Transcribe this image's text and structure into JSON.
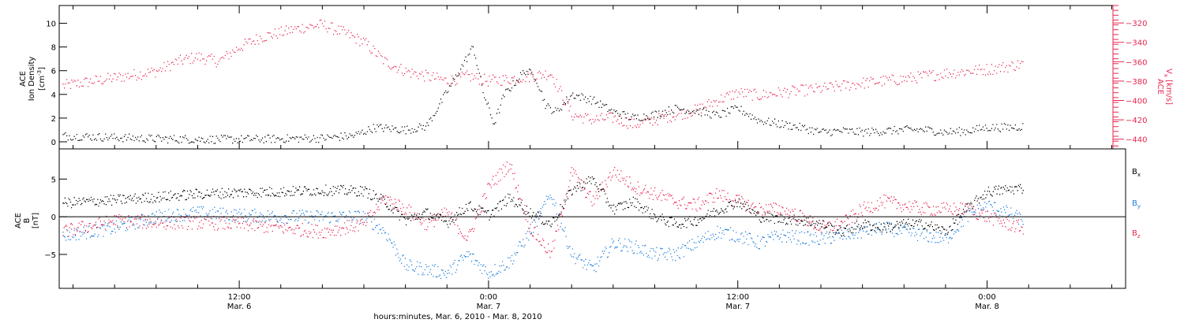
{
  "chart_data": [
    {
      "type": "scatter",
      "title": "",
      "xlabel": "hours:minutes, Mar. 6, 2010 - Mar. 8, 2010",
      "ylabel": "ACE Ion Density [cm^-3]",
      "ylabel_parts": [
        "ACE",
        "Ion Density",
        "[cm",
        "-3",
        "]"
      ],
      "y2label": "ACE Vx [km/s]",
      "y2label_parts": [
        "ACE",
        "V",
        "x",
        " [km/s]"
      ],
      "xlim": [
        "Mar. 6 03:20",
        "Mar. 8 06:40"
      ],
      "ylim": [
        -0.6,
        11.5
      ],
      "y2lim": [
        -450,
        -302
      ],
      "yticks": [
        0,
        2,
        4,
        6,
        8,
        10
      ],
      "y2ticks": [
        -320,
        -340,
        -360,
        -380,
        -400,
        -420,
        -440
      ],
      "colors": {
        "density": "#000000",
        "vx": "#e8254f"
      },
      "series": [
        {
          "axis": "left",
          "x": [
            "Mar. 6 03:30",
            "Mar. 6 06:00",
            "Mar. 6 08:00",
            "Mar. 6 10:00",
            "Mar. 6 12:00",
            "Mar. 6 14:00",
            "Mar. 6 16:00",
            "Mar. 6 17:30",
            "Mar. 6 18:30",
            "Mar. 6 20:00",
            "Mar. 6 21:00",
            "Mar. 6 21:45",
            "Mar. 6 22:15",
            "Mar. 6 22:45",
            "Mar. 6 23:15",
            "Mar. 6 23:45",
            "Mar. 7 00:15",
            "Mar. 7 00:45",
            "Mar. 7 01:15",
            "Mar. 7 01:45",
            "Mar. 7 02:15",
            "Mar. 7 02:45",
            "Mar. 7 03:15",
            "Mar. 7 04:00",
            "Mar. 7 05:00",
            "Mar. 7 06:00",
            "Mar. 7 07:00",
            "Mar. 7 08:00",
            "Mar. 7 09:00",
            "Mar. 7 10:00",
            "Mar. 7 11:00",
            "Mar. 7 12:00",
            "Mar. 7 13:00",
            "Mar. 7 14:00",
            "Mar. 7 15:00",
            "Mar. 7 16:00",
            "Mar. 7 17:00",
            "Mar. 7 18:00",
            "Mar. 7 19:00",
            "Mar. 7 20:00",
            "Mar. 7 21:00",
            "Mar. 7 22:00",
            "Mar. 7 23:00",
            "Mar. 8 00:00",
            "Mar. 8 01:00",
            "Mar. 8 01:45"
          ],
          "values": [
            0.5,
            0.35,
            0.25,
            0.2,
            0.2,
            0.25,
            0.3,
            0.5,
            1.2,
            1.0,
            1.3,
            3.5,
            5.0,
            6.5,
            8.0,
            4.0,
            1.5,
            4.0,
            5.0,
            6.0,
            5.5,
            3.0,
            2.5,
            4.0,
            3.5,
            2.5,
            2.0,
            2.3,
            2.8,
            2.6,
            2.2,
            2.8,
            1.8,
            1.5,
            1.2,
            0.8,
            0.9,
            0.8,
            0.9,
            1.0,
            1.0,
            0.8,
            0.9,
            1.2,
            1.2,
            1.3
          ]
        },
        {
          "axis": "right",
          "x": [
            "Mar. 6 03:30",
            "Mar. 6 05:00",
            "Mar. 6 06:30",
            "Mar. 6 08:00",
            "Mar. 6 09:00",
            "Mar. 6 10:00",
            "Mar. 6 11:00",
            "Mar. 6 12:00",
            "Mar. 6 13:00",
            "Mar. 6 14:00",
            "Mar. 6 15:00",
            "Mar. 6 16:00",
            "Mar. 6 17:00",
            "Mar. 6 18:00",
            "Mar. 6 19:00",
            "Mar. 6 20:00",
            "Mar. 6 21:00",
            "Mar. 6 22:00",
            "Mar. 6 23:00",
            "Mar. 7 00:00",
            "Mar. 7 01:00",
            "Mar. 7 02:00",
            "Mar. 7 03:00",
            "Mar. 7 04:00",
            "Mar. 7 05:00",
            "Mar. 7 06:00",
            "Mar. 7 07:00",
            "Mar. 7 08:00",
            "Mar. 7 09:00",
            "Mar. 7 10:00",
            "Mar. 7 11:00",
            "Mar. 7 12:00",
            "Mar. 7 13:00",
            "Mar. 7 14:00",
            "Mar. 7 15:00",
            "Mar. 7 16:00",
            "Mar. 7 17:00",
            "Mar. 7 18:00",
            "Mar. 7 19:00",
            "Mar. 7 20:00",
            "Mar. 7 21:00",
            "Mar. 7 22:00",
            "Mar. 7 23:00",
            "Mar. 8 00:00",
            "Mar. 8 01:00",
            "Mar. 8 01:45"
          ],
          "values": [
            -385,
            -380,
            -375,
            -370,
            -360,
            -355,
            -360,
            -345,
            -335,
            -330,
            -325,
            -322,
            -330,
            -340,
            -360,
            -370,
            -375,
            -380,
            -375,
            -380,
            -378,
            -375,
            -372,
            -415,
            -420,
            -418,
            -425,
            -420,
            -415,
            -410,
            -400,
            -392,
            -395,
            -392,
            -390,
            -388,
            -385,
            -382,
            -380,
            -378,
            -375,
            -372,
            -370,
            -368,
            -365,
            -362
          ]
        }
      ]
    },
    {
      "type": "scatter",
      "title": "",
      "xlabel": "",
      "ylabel": "ACE B [nT]",
      "ylabel_parts": [
        "ACE",
        "B",
        "[nT]"
      ],
      "ylim": [
        -9.5,
        9.0
      ],
      "yticks": [
        5,
        0,
        -5
      ],
      "zero_line": true,
      "legend": "right",
      "series": [
        {
          "name": "Bx",
          "name_parts": [
            "B",
            "x"
          ],
          "color": "#000000",
          "x": [
            "Mar. 6 03:30",
            "Mar. 6 06:00",
            "Mar. 6 08:00",
            "Mar. 6 10:00",
            "Mar. 6 12:00",
            "Mar. 6 14:00",
            "Mar. 6 16:00",
            "Mar. 6 18:00",
            "Mar. 6 19:00",
            "Mar. 6 20:00",
            "Mar. 6 21:00",
            "Mar. 6 22:00",
            "Mar. 6 23:00",
            "Mar. 7 00:00",
            "Mar. 7 01:00",
            "Mar. 7 02:00",
            "Mar. 7 03:00",
            "Mar. 7 04:00",
            "Mar. 7 05:00",
            "Mar. 7 06:00",
            "Mar. 7 07:00",
            "Mar. 7 08:00",
            "Mar. 7 09:00",
            "Mar. 7 10:00",
            "Mar. 7 11:00",
            "Mar. 7 12:00",
            "Mar. 7 13:00",
            "Mar. 7 14:00",
            "Mar. 7 15:00",
            "Mar. 7 16:00",
            "Mar. 7 17:00",
            "Mar. 7 18:00",
            "Mar. 7 19:00",
            "Mar. 7 20:00",
            "Mar. 7 21:00",
            "Mar. 7 22:00",
            "Mar. 7 23:00",
            "Mar. 8 00:00",
            "Mar. 8 01:00",
            "Mar. 8 01:45"
          ],
          "values": [
            1.8,
            2.2,
            2.6,
            3.0,
            3.2,
            3.3,
            3.5,
            3.4,
            2.0,
            -0.5,
            0.5,
            -0.8,
            1.5,
            0.2,
            2.5,
            0.5,
            -1.0,
            3.5,
            5.0,
            1.0,
            2.0,
            0.0,
            -1.0,
            -0.5,
            0.8,
            2.0,
            0.0,
            -0.3,
            -0.5,
            -1.0,
            -2.0,
            -1.0,
            -1.5,
            -1.0,
            -1.0,
            -2.0,
            1.0,
            3.3,
            3.6,
            3.8
          ]
        },
        {
          "name": "By",
          "name_parts": [
            "B",
            "y"
          ],
          "color": "#1f7fd9",
          "x": [
            "Mar. 6 03:30",
            "Mar. 6 06:00",
            "Mar. 6 08:00",
            "Mar. 6 10:00",
            "Mar. 6 12:00",
            "Mar. 6 14:00",
            "Mar. 6 16:00",
            "Mar. 6 18:00",
            "Mar. 6 19:00",
            "Mar. 6 20:00",
            "Mar. 6 21:00",
            "Mar. 6 22:00",
            "Mar. 6 23:00",
            "Mar. 7 00:00",
            "Mar. 7 01:00",
            "Mar. 7 02:00",
            "Mar. 7 03:00",
            "Mar. 7 04:00",
            "Mar. 7 05:00",
            "Mar. 7 06:00",
            "Mar. 7 07:00",
            "Mar. 7 08:00",
            "Mar. 7 09:00",
            "Mar. 7 10:00",
            "Mar. 7 11:00",
            "Mar. 7 12:00",
            "Mar. 7 13:00",
            "Mar. 7 14:00",
            "Mar. 7 15:00",
            "Mar. 7 16:00",
            "Mar. 7 17:00",
            "Mar. 7 18:00",
            "Mar. 7 19:00",
            "Mar. 7 20:00",
            "Mar. 7 21:00",
            "Mar. 7 22:00",
            "Mar. 7 23:00",
            "Mar. 8 00:00",
            "Mar. 8 01:00",
            "Mar. 8 01:45"
          ],
          "values": [
            -2.5,
            -1.5,
            0.0,
            0.5,
            0.2,
            0.0,
            0.0,
            0.0,
            -2.0,
            -6.5,
            -7.0,
            -7.5,
            -5.0,
            -7.5,
            -6.0,
            -2.0,
            3.0,
            -5.0,
            -7.0,
            -3.5,
            -4.0,
            -5.0,
            -5.0,
            -3.5,
            -2.0,
            -2.5,
            -3.5,
            -2.5,
            -2.8,
            -3.0,
            -2.5,
            -2.0,
            -1.5,
            -2.0,
            -2.5,
            -3.0,
            0.0,
            1.5,
            0.5,
            -0.5
          ]
        },
        {
          "name": "Bz",
          "name_parts": [
            "B",
            "z"
          ],
          "color": "#e8254f",
          "x": [
            "Mar. 6 03:30",
            "Mar. 6 06:00",
            "Mar. 6 08:00",
            "Mar. 6 10:00",
            "Mar. 6 12:00",
            "Mar. 6 14:00",
            "Mar. 6 16:00",
            "Mar. 6 18:00",
            "Mar. 6 19:00",
            "Mar. 6 20:00",
            "Mar. 6 21:00",
            "Mar. 6 22:00",
            "Mar. 6 23:00",
            "Mar. 7 00:00",
            "Mar. 7 01:00",
            "Mar. 7 02:00",
            "Mar. 7 03:00",
            "Mar. 7 04:00",
            "Mar. 7 05:00",
            "Mar. 7 06:00",
            "Mar. 7 07:00",
            "Mar. 7 08:00",
            "Mar. 7 09:00",
            "Mar. 7 10:00",
            "Mar. 7 11:00",
            "Mar. 7 12:00",
            "Mar. 7 13:00",
            "Mar. 7 14:00",
            "Mar. 7 15:00",
            "Mar. 7 16:00",
            "Mar. 7 17:00",
            "Mar. 7 18:00",
            "Mar. 7 19:00",
            "Mar. 7 20:00",
            "Mar. 7 21:00",
            "Mar. 7 22:00",
            "Mar. 7 23:00",
            "Mar. 8 00:00",
            "Mar. 8 01:00",
            "Mar. 8 01:45"
          ],
          "values": [
            -2.0,
            -0.5,
            -0.8,
            -0.8,
            -1.0,
            -1.5,
            -2.0,
            -1.0,
            2.5,
            1.0,
            -1.0,
            0.5,
            -3.0,
            4.0,
            7.0,
            -1.5,
            -5.0,
            6.0,
            2.0,
            6.0,
            4.0,
            3.0,
            2.0,
            1.5,
            3.0,
            2.0,
            1.0,
            1.0,
            0.0,
            -1.5,
            -1.0,
            1.0,
            2.0,
            1.5,
            1.0,
            1.0,
            1.0,
            0.0,
            -1.0,
            -1.5
          ]
        }
      ]
    }
  ],
  "x_axis": {
    "ticks": [
      {
        "t": "Mar. 6 12:00",
        "line1": "12:00",
        "line2": "Mar. 6"
      },
      {
        "t": "Mar. 7 00:00",
        "line1": "0:00",
        "line2": "Mar. 7"
      },
      {
        "t": "Mar. 7 12:00",
        "line1": "12:00",
        "line2": "Mar. 7"
      },
      {
        "t": "Mar. 8 00:00",
        "line1": "0:00",
        "line2": "Mar. 8"
      }
    ],
    "minor_ticks_per_major": 6
  }
}
